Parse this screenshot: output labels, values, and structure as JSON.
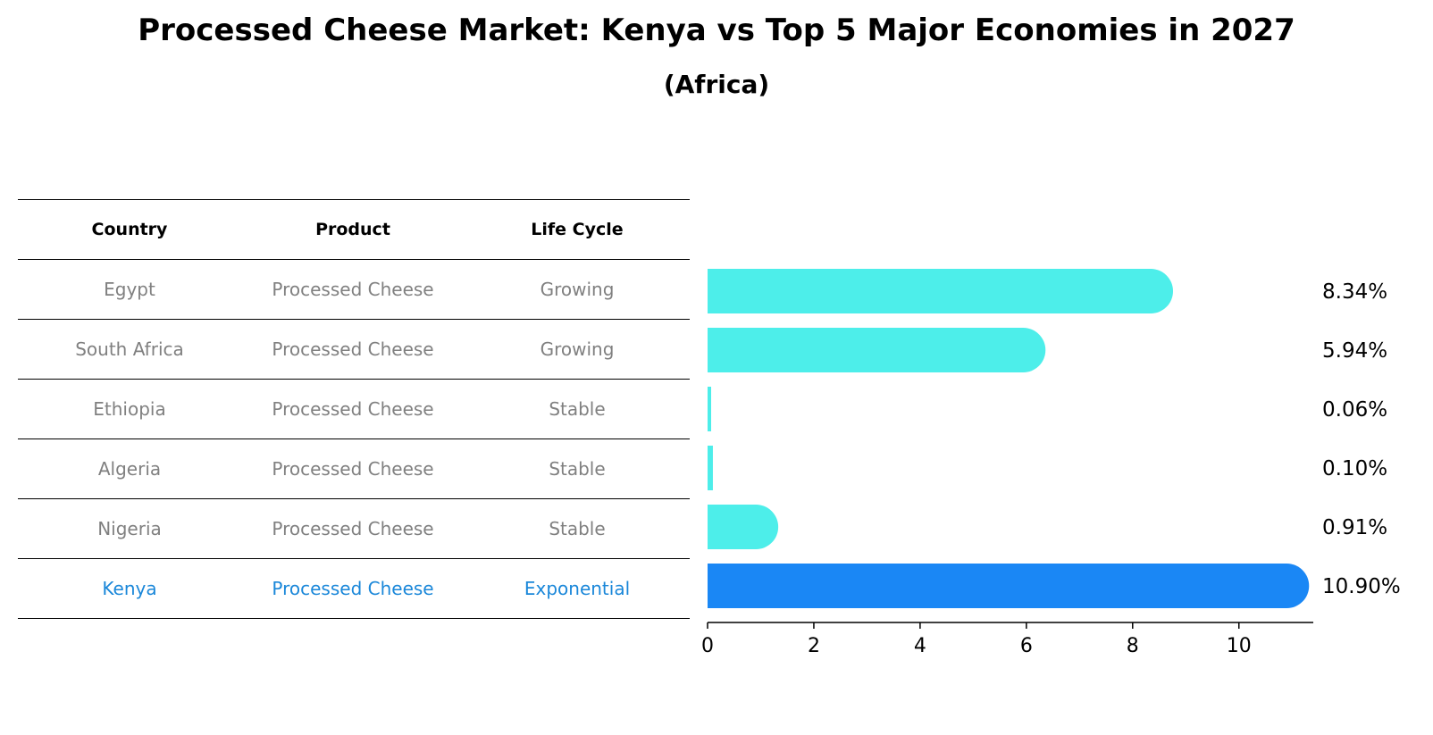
{
  "title": "Processed Cheese Market: Kenya vs Top 5 Major Economies in 2027",
  "subtitle": "(Africa)",
  "table": {
    "headers": [
      "Country",
      "Product",
      "Life Cycle"
    ],
    "rows": [
      [
        "Egypt",
        "Processed Cheese",
        "Growing"
      ],
      [
        "South Africa",
        "Processed Cheese",
        "Growing"
      ],
      [
        "Ethiopia",
        "Processed Cheese",
        "Stable"
      ],
      [
        "Algeria",
        "Processed Cheese",
        "Stable"
      ],
      [
        "Nigeria",
        "Processed Cheese",
        "Stable"
      ],
      [
        "Kenya",
        "Processed Cheese",
        "Exponential"
      ]
    ]
  },
  "chart_data": {
    "type": "bar",
    "orientation": "horizontal",
    "categories": [
      "Egypt",
      "South Africa",
      "Ethiopia",
      "Algeria",
      "Nigeria",
      "Kenya"
    ],
    "values": [
      8.34,
      5.94,
      0.06,
      0.1,
      0.91,
      10.9
    ],
    "value_labels": [
      "8.34%",
      "5.94%",
      "0.06%",
      "0.10%",
      "0.91%",
      "10.90%"
    ],
    "xlim": [
      0,
      11.4
    ],
    "xticks": [
      0,
      2,
      4,
      6,
      8,
      10
    ],
    "highlight_index": 5,
    "colors": {
      "default": "#4deeea",
      "highlight": "#1a87f5"
    }
  }
}
